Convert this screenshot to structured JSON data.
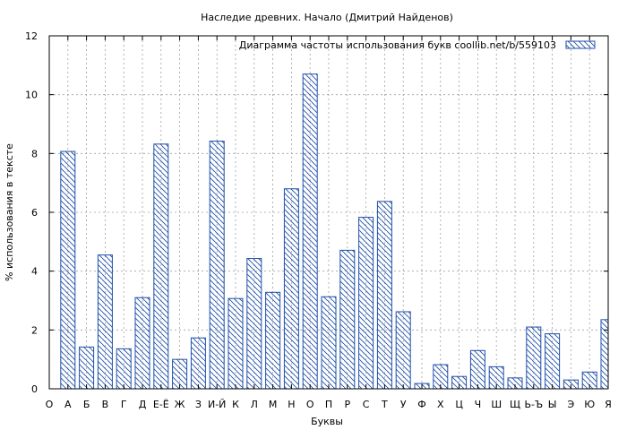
{
  "chart_data": {
    "type": "bar",
    "title": "Наследие древних. Начало (Дмитрий Найденов)",
    "xlabel": "Буквы",
    "ylabel": "% использования в тексте",
    "ylim": [
      0,
      12
    ],
    "yticks": [
      0,
      2,
      4,
      6,
      8,
      10,
      12
    ],
    "grid": true,
    "legend_position": "top-right",
    "bar_color": "#1f4fa8",
    "categories": [
      "О",
      "А",
      "Б",
      "В",
      "Г",
      "Д",
      "Е-Ё",
      "Ж",
      "З",
      "И-Й",
      "К",
      "Л",
      "М",
      "Н",
      "О",
      "П",
      "Р",
      "С",
      "Т",
      "У",
      "Ф",
      "Х",
      "Ц",
      "Ч",
      "Ш",
      "Щ",
      "Ь-Ъ",
      "Ы",
      "Э",
      "Ю",
      "Я"
    ],
    "series": [
      {
        "name": "Диаграмма частоты использования букв  coollib.net/b/559103",
        "values": [
          null,
          8.07,
          1.42,
          4.55,
          1.36,
          3.1,
          8.32,
          1.0,
          1.73,
          8.42,
          3.07,
          4.43,
          3.28,
          6.8,
          10.7,
          3.13,
          4.71,
          5.83,
          6.37,
          2.62,
          0.18,
          0.82,
          0.42,
          1.3,
          0.75,
          0.37,
          2.1,
          1.87,
          0.3,
          0.57,
          2.35
        ]
      }
    ]
  }
}
